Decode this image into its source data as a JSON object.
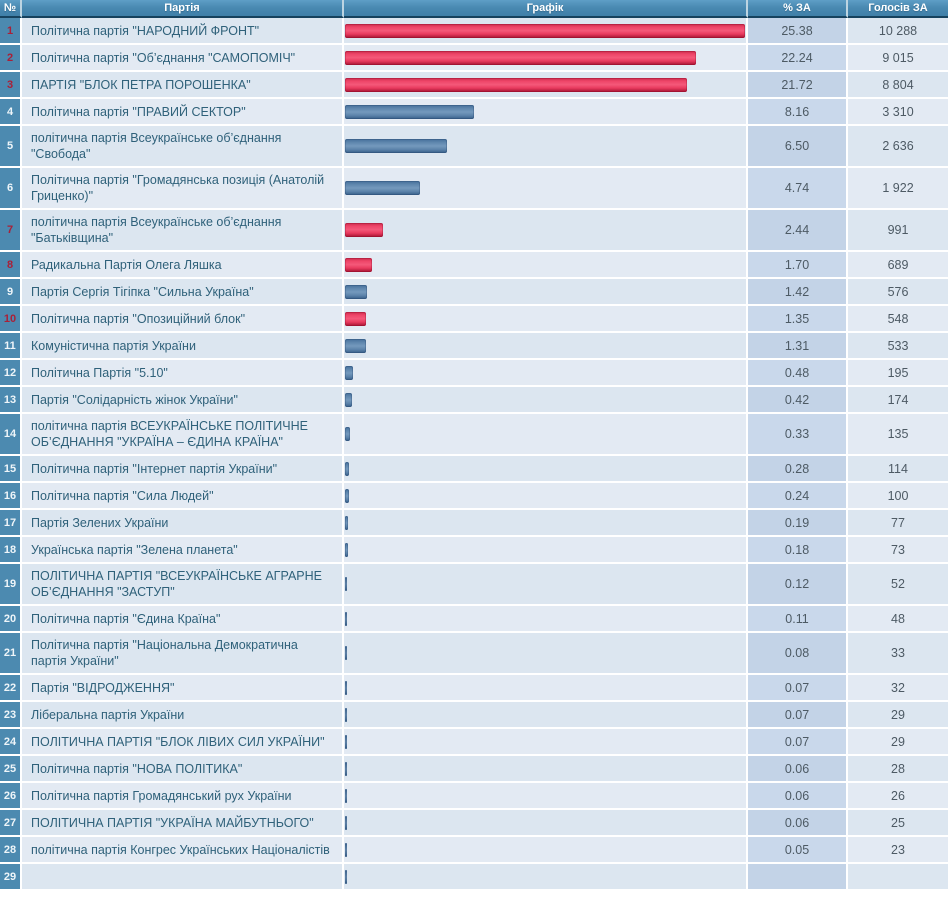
{
  "table": {
    "headers": [
      "№",
      "Партія",
      "Графік",
      "% ЗА",
      "Голосів ЗА"
    ],
    "rows": [
      {
        "num": "1",
        "name": "Політична партія \"НАРОДНИЙ ФРОНТ\"",
        "pct": "25.38",
        "votes": "10 288",
        "color": "red"
      },
      {
        "num": "2",
        "name": "Політична партія \"Об’єднання \"САМОПОМІЧ\"",
        "pct": "22.24",
        "votes": "9 015",
        "color": "red"
      },
      {
        "num": "3",
        "name": "ПАРТІЯ \"БЛОК ПЕТРА ПОРОШЕНКА\"",
        "pct": "21.72",
        "votes": "8 804",
        "color": "red"
      },
      {
        "num": "4",
        "name": "Політична партія \"ПРАВИЙ СЕКТОР\"",
        "pct": "8.16",
        "votes": "3 310",
        "color": "blue"
      },
      {
        "num": "5",
        "name": "політична партія Всеукраїнське об’єднання \"Свобода\"",
        "pct": "6.50",
        "votes": "2 636",
        "color": "blue"
      },
      {
        "num": "6",
        "name": "Політична партія \"Громадянська позиція (Анатолій Гриценко)\"",
        "pct": "4.74",
        "votes": "1 922",
        "color": "blue"
      },
      {
        "num": "7",
        "name": "політична партія Всеукраїнське об’єднання \"Батьківщина\"",
        "pct": "2.44",
        "votes": "991",
        "color": "red"
      },
      {
        "num": "8",
        "name": "Радикальна Партія Олега Ляшка",
        "pct": "1.70",
        "votes": "689",
        "color": "red"
      },
      {
        "num": "9",
        "name": "Партія Сергія Тігіпка \"Сильна Україна\"",
        "pct": "1.42",
        "votes": "576",
        "color": "blue"
      },
      {
        "num": "10",
        "name": "Політична партія \"Опозиційний блок\"",
        "pct": "1.35",
        "votes": "548",
        "color": "red"
      },
      {
        "num": "11",
        "name": "Комуністична партія України",
        "pct": "1.31",
        "votes": "533",
        "color": "blue"
      },
      {
        "num": "12",
        "name": "Політична Партія \"5.10\"",
        "pct": "0.48",
        "votes": "195",
        "color": "blue"
      },
      {
        "num": "13",
        "name": "Партія \"Солідарність жінок України\"",
        "pct": "0.42",
        "votes": "174",
        "color": "blue"
      },
      {
        "num": "14",
        "name": "політична партія ВСЕУКРАЇНСЬКЕ ПОЛІТИЧНЕ ОБ’ЄДНАННЯ \"УКРАЇНА – ЄДИНА КРАЇНА\"",
        "pct": "0.33",
        "votes": "135",
        "color": "blue"
      },
      {
        "num": "15",
        "name": "Політична партія \"Інтернет партія України\"",
        "pct": "0.28",
        "votes": "114",
        "color": "blue"
      },
      {
        "num": "16",
        "name": "Політична партія \"Сила Людей\"",
        "pct": "0.24",
        "votes": "100",
        "color": "blue"
      },
      {
        "num": "17",
        "name": "Партія Зелених України",
        "pct": "0.19",
        "votes": "77",
        "color": "blue"
      },
      {
        "num": "18",
        "name": "Українська партія \"Зелена планета\"",
        "pct": "0.18",
        "votes": "73",
        "color": "blue"
      },
      {
        "num": "19",
        "name": "ПОЛІТИЧНА ПАРТІЯ \"ВСЕУКРАЇНСЬКЕ АГРАРНЕ ОБ’ЄДНАННЯ \"ЗАСТУП\"",
        "pct": "0.12",
        "votes": "52",
        "color": "blue"
      },
      {
        "num": "20",
        "name": "Політична партія \"Єдина Країна\"",
        "pct": "0.11",
        "votes": "48",
        "color": "blue"
      },
      {
        "num": "21",
        "name": "Політична партія \"Національна Демократична партія України\"",
        "pct": "0.08",
        "votes": "33",
        "color": "blue"
      },
      {
        "num": "22",
        "name": "Партія \"ВІДРОДЖЕННЯ\"",
        "pct": "0.07",
        "votes": "32",
        "color": "blue"
      },
      {
        "num": "23",
        "name": "Ліберальна партія України",
        "pct": "0.07",
        "votes": "29",
        "color": "blue"
      },
      {
        "num": "24",
        "name": "ПОЛІТИЧНА ПАРТІЯ \"БЛОК ЛІВИХ СИЛ УКРАЇНИ\"",
        "pct": "0.07",
        "votes": "29",
        "color": "blue"
      },
      {
        "num": "25",
        "name": "Політична партія \"НОВА ПОЛІТИКА\"",
        "pct": "0.06",
        "votes": "28",
        "color": "blue"
      },
      {
        "num": "26",
        "name": "Політична партія Громадянський рух України",
        "pct": "0.06",
        "votes": "26",
        "color": "blue"
      },
      {
        "num": "27",
        "name": "ПОЛІТИЧНА ПАРТІЯ \"УКРАЇНА МАЙБУТНЬОГО\"",
        "pct": "0.06",
        "votes": "25",
        "color": "blue"
      },
      {
        "num": "28",
        "name": "політична партія Конгрес Українських Націоналістів",
        "pct": "0.05",
        "votes": "23",
        "color": "blue"
      },
      {
        "num": "29",
        "name": "",
        "pct": "",
        "votes": "",
        "color": "blue",
        "partial": true
      }
    ]
  },
  "colors": {
    "header_bg": "#4a8ab2",
    "header_border_bottom": "#16425e",
    "row_number_bg": "#4c8ab0",
    "row_bg_odd": "#dce6f0",
    "row_bg_even": "#e3eaf3",
    "pct_col_bg": "#c6d6e9",
    "red_bar": "#ee4568",
    "blue_bar": "#5f87ae",
    "red_row_number": "#a92038",
    "party_text": "#2f617a"
  },
  "chart_data": {
    "type": "bar",
    "orientation": "horizontal",
    "categories": [
      "Політична партія \"НАРОДНИЙ ФРОНТ\"",
      "Політична партія \"Об’єднання \"САМОПОМІЧ\"",
      "ПАРТІЯ \"БЛОК ПЕТРА ПОРОШЕНКА\"",
      "Політична партія \"ПРАВИЙ СЕКТОР\"",
      "політична партія Всеукраїнське об’єднання \"Свобода\"",
      "Політична партія \"Громадянська позиція (Анатолій Гриценко)\"",
      "політична партія Всеукраїнське об’єднання \"Батьківщина\"",
      "Радикальна Партія Олега Ляшка",
      "Партія Сергія Тігіпка \"Сильна Україна\"",
      "Політична партія \"Опозиційний блок\"",
      "Комуністична партія України",
      "Політична Партія \"5.10\"",
      "Партія \"Солідарність жінок України\"",
      "політична партія ВСЕУКРАЇНСЬКЕ ПОЛІТИЧНЕ ОБ’ЄДНАННЯ \"УКРАЇНА – ЄДИНА КРАЇНА\"",
      "Політична партія \"Інтернет партія України\"",
      "Політична партія \"Сила Людей\"",
      "Партія Зелених України",
      "Українська партія \"Зелена планета\"",
      "ПОЛІТИЧНА ПАРТІЯ \"ВСЕУКРАЇНСЬКЕ АГРАРНЕ ОБ’ЄДНАННЯ \"ЗАСТУП\"",
      "Політична партія \"Єдина Країна\"",
      "Політична партія \"Національна Демократична партія України\"",
      "Партія \"ВІДРОДЖЕННЯ\"",
      "Ліберальна партія України",
      "ПОЛІТИЧНА ПАРТІЯ \"БЛОК ЛІВИХ СИЛ УКРАЇНИ\"",
      "Політична партія \"НОВА ПОЛІТИКА\"",
      "Політична партія Громадянський рух України",
      "ПОЛІТИЧНА ПАРТІЯ \"УКРАЇНА МАЙБУТНЬОГО\"",
      "політична партія Конгрес Українських Націоналістів"
    ],
    "series": [
      {
        "name": "% ЗА",
        "values": [
          25.38,
          22.24,
          21.72,
          8.16,
          6.5,
          4.74,
          2.44,
          1.7,
          1.42,
          1.35,
          1.31,
          0.48,
          0.42,
          0.33,
          0.28,
          0.24,
          0.19,
          0.18,
          0.12,
          0.11,
          0.08,
          0.07,
          0.07,
          0.07,
          0.06,
          0.06,
          0.06,
          0.05
        ]
      },
      {
        "name": "Голосів ЗА",
        "values": [
          10288,
          9015,
          8804,
          3310,
          2636,
          1922,
          991,
          689,
          576,
          548,
          533,
          195,
          174,
          135,
          114,
          100,
          77,
          73,
          52,
          48,
          33,
          32,
          29,
          29,
          28,
          26,
          25,
          23
        ]
      }
    ],
    "bar_colors": [
      "red",
      "red",
      "red",
      "blue",
      "blue",
      "blue",
      "red",
      "red",
      "blue",
      "red",
      "blue",
      "blue",
      "blue",
      "blue",
      "blue",
      "blue",
      "blue",
      "blue",
      "blue",
      "blue",
      "blue",
      "blue",
      "blue",
      "blue",
      "blue",
      "blue",
      "blue",
      "blue"
    ],
    "xlim": [
      0,
      25.38
    ],
    "grid": false,
    "legend": false
  }
}
